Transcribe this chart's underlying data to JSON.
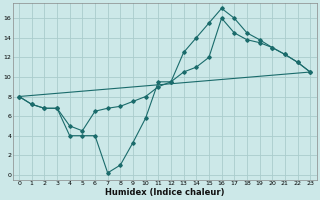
{
  "xlabel": "Humidex (Indice chaleur)",
  "bg_color": "#cce8e8",
  "grid_color": "#aacccc",
  "line_color": "#1a6b6b",
  "xlim": [
    -0.5,
    23.5
  ],
  "ylim": [
    -0.5,
    17.5
  ],
  "xticks": [
    0,
    1,
    2,
    3,
    4,
    5,
    6,
    7,
    8,
    9,
    10,
    11,
    12,
    13,
    14,
    15,
    16,
    17,
    18,
    19,
    20,
    21,
    22,
    23
  ],
  "yticks": [
    0,
    2,
    4,
    6,
    8,
    10,
    12,
    14,
    16
  ],
  "line1_x": [
    0,
    1,
    2,
    3,
    4,
    5,
    6,
    7,
    8,
    9,
    10,
    11,
    12,
    13,
    14,
    15,
    16,
    17,
    18,
    19,
    20,
    21,
    22,
    23
  ],
  "line1_y": [
    8.0,
    7.2,
    6.8,
    6.8,
    4.0,
    4.0,
    4.0,
    0.2,
    1.0,
    3.3,
    5.8,
    9.5,
    9.5,
    12.5,
    14.0,
    15.5,
    17.0,
    16.0,
    14.5,
    13.8,
    13.0,
    12.3,
    11.5,
    10.5
  ],
  "line2_x": [
    0,
    1,
    2,
    3,
    4,
    5,
    6,
    7,
    8,
    9,
    10,
    11,
    12,
    13,
    14,
    15,
    16,
    17,
    18,
    19,
    20,
    21,
    22,
    23
  ],
  "line2_y": [
    8.0,
    7.2,
    6.8,
    6.8,
    5.0,
    4.5,
    6.5,
    6.8,
    7.0,
    7.5,
    8.0,
    9.0,
    9.5,
    10.5,
    11.0,
    12.0,
    16.0,
    14.5,
    13.8,
    13.5,
    13.0,
    12.3,
    11.5,
    10.5
  ],
  "line3_x": [
    0,
    23
  ],
  "line3_y": [
    8.0,
    10.5
  ]
}
